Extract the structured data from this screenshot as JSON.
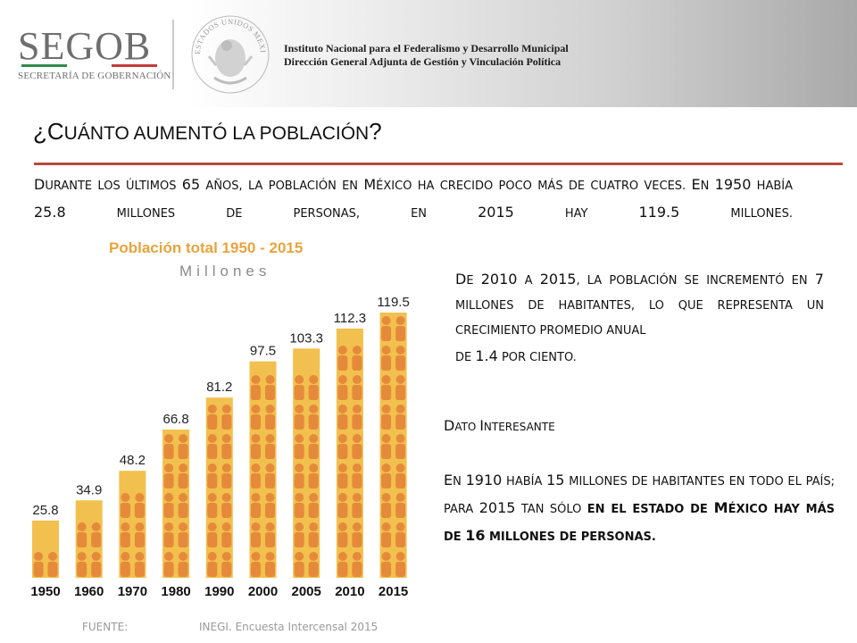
{
  "header": {
    "logo_text": "SEGOB",
    "logo_subtitle": "SECRETARÍA DE GOBERNACIÓN",
    "seal_text": "ESTADOS UNIDOS MEXICANOS",
    "institution_line1": "Instituto Nacional para el Federalismo y Desarrollo Municipal",
    "institution_line2": "Dirección General Adjunta de Gestión y Vinculación Política"
  },
  "colors": {
    "accent_rule": "#b94a3f",
    "bar": "#f2c04e",
    "figure": "#e58a3a",
    "chart_title": "#e9a33d"
  },
  "title": {
    "open": "¿",
    "first": "C",
    "rest": "UÁNTO AUMENTÓ LA POBLACIÓN",
    "close": "?"
  },
  "intro": {
    "s1": "D",
    "s2": "URANTE LOS ÚLTIMOS ",
    "s3": "65",
    "s4": " AÑOS, LA POBLACIÓN EN ",
    "s5": "M",
    "s6": "ÉXICO HA CRECIDO POCO MÁS DE CUATRO VECES. ",
    "s7": "E",
    "s8": "N ",
    "s9": "1950",
    "s10": " HABÍA ",
    "s11": "25.8",
    "s12": " MILLONES DE PERSONAS, EN ",
    "s13": "2015",
    "s14": " HAY ",
    "s15": "119.5",
    "s16": " MILLONES."
  },
  "growth": {
    "s1": "D",
    "s2": "E ",
    "s3": "2010",
    "s4": " A ",
    "s5": "2015",
    "s6": ", LA POBLACIÓN SE INCREMENTÓ EN ",
    "s7": "7",
    "s8": " MILLONES DE HABITANTES, LO QUE REPRESENTA UN CRECIMIENTO PROMEDIO ANUAL",
    "s9": "DE ",
    "s10": "1.4",
    "s11": " POR CIENTO."
  },
  "dato": {
    "s1": "D",
    "s2": "ATO ",
    "s3": "I",
    "s4": "NTERESANTE"
  },
  "fact": {
    "s1": "E",
    "s2": "N ",
    "s3": "1910",
    "s4": " HABÍA ",
    "s5": "15",
    "s6": " MILLONES DE HABITANTES EN TODO EL PAÍS; PARA ",
    "s7": "2015",
    "s8": " TAN SÓLO ",
    "s9": "EN EL ESTADO DE ",
    "s10": "M",
    "s11": "ÉXICO HAY MÁS DE ",
    "s12": "16",
    "s13": " MILLONES DE PERSONAS."
  },
  "source": {
    "label": "FUENTE:",
    "value": "INEGI. Encuesta Intercensal 2015"
  },
  "chart_data": {
    "type": "bar",
    "title": "Población total 1950 - 2015",
    "subtitle": "Millones",
    "categories": [
      "1950",
      "1960",
      "1970",
      "1980",
      "1990",
      "2000",
      "2005",
      "2010",
      "2015"
    ],
    "values": [
      25.8,
      34.9,
      48.2,
      66.8,
      81.2,
      97.5,
      103.3,
      112.3,
      119.5
    ],
    "data_labels": [
      "25.8",
      "34.9",
      "48.2",
      "66.8",
      "81.2",
      "97.5",
      "103.3",
      "112.3",
      "119.5"
    ],
    "ylim": [
      0,
      119.5
    ],
    "grid": false
  }
}
